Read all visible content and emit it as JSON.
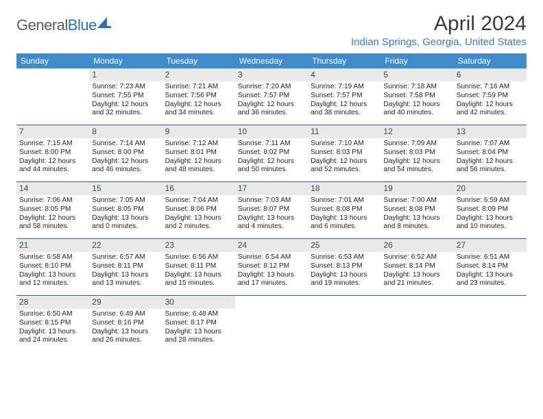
{
  "brand": {
    "part1": "General",
    "part2": "Blue"
  },
  "title": "April 2024",
  "location": "Indian Springs, Georgia, United States",
  "colors": {
    "header_bar": "#3e8ccc",
    "header_text": "#ffffff",
    "daynum_bg": "#e9e9e9",
    "week_divider": "#2f5d88",
    "location_color": "#3e7ab5",
    "logo_gray": "#5b5b5b",
    "logo_blue": "#2a71b8"
  },
  "weekdays": [
    "Sunday",
    "Monday",
    "Tuesday",
    "Wednesday",
    "Thursday",
    "Friday",
    "Saturday"
  ],
  "weeks": [
    [
      {
        "n": "",
        "sunrise": "",
        "sunset": "",
        "daylight": ""
      },
      {
        "n": "1",
        "sunrise": "Sunrise: 7:23 AM",
        "sunset": "Sunset: 7:55 PM",
        "daylight": "Daylight: 12 hours and 32 minutes."
      },
      {
        "n": "2",
        "sunrise": "Sunrise: 7:21 AM",
        "sunset": "Sunset: 7:56 PM",
        "daylight": "Daylight: 12 hours and 34 minutes."
      },
      {
        "n": "3",
        "sunrise": "Sunrise: 7:20 AM",
        "sunset": "Sunset: 7:57 PM",
        "daylight": "Daylight: 12 hours and 36 minutes."
      },
      {
        "n": "4",
        "sunrise": "Sunrise: 7:19 AM",
        "sunset": "Sunset: 7:57 PM",
        "daylight": "Daylight: 12 hours and 38 minutes."
      },
      {
        "n": "5",
        "sunrise": "Sunrise: 7:18 AM",
        "sunset": "Sunset: 7:58 PM",
        "daylight": "Daylight: 12 hours and 40 minutes."
      },
      {
        "n": "6",
        "sunrise": "Sunrise: 7:16 AM",
        "sunset": "Sunset: 7:59 PM",
        "daylight": "Daylight: 12 hours and 42 minutes."
      }
    ],
    [
      {
        "n": "7",
        "sunrise": "Sunrise: 7:15 AM",
        "sunset": "Sunset: 8:00 PM",
        "daylight": "Daylight: 12 hours and 44 minutes."
      },
      {
        "n": "8",
        "sunrise": "Sunrise: 7:14 AM",
        "sunset": "Sunset: 8:00 PM",
        "daylight": "Daylight: 12 hours and 46 minutes."
      },
      {
        "n": "9",
        "sunrise": "Sunrise: 7:12 AM",
        "sunset": "Sunset: 8:01 PM",
        "daylight": "Daylight: 12 hours and 48 minutes."
      },
      {
        "n": "10",
        "sunrise": "Sunrise: 7:11 AM",
        "sunset": "Sunset: 8:02 PM",
        "daylight": "Daylight: 12 hours and 50 minutes."
      },
      {
        "n": "11",
        "sunrise": "Sunrise: 7:10 AM",
        "sunset": "Sunset: 8:03 PM",
        "daylight": "Daylight: 12 hours and 52 minutes."
      },
      {
        "n": "12",
        "sunrise": "Sunrise: 7:09 AM",
        "sunset": "Sunset: 8:03 PM",
        "daylight": "Daylight: 12 hours and 54 minutes."
      },
      {
        "n": "13",
        "sunrise": "Sunrise: 7:07 AM",
        "sunset": "Sunset: 8:04 PM",
        "daylight": "Daylight: 12 hours and 56 minutes."
      }
    ],
    [
      {
        "n": "14",
        "sunrise": "Sunrise: 7:06 AM",
        "sunset": "Sunset: 8:05 PM",
        "daylight": "Daylight: 12 hours and 58 minutes."
      },
      {
        "n": "15",
        "sunrise": "Sunrise: 7:05 AM",
        "sunset": "Sunset: 8:05 PM",
        "daylight": "Daylight: 13 hours and 0 minutes."
      },
      {
        "n": "16",
        "sunrise": "Sunrise: 7:04 AM",
        "sunset": "Sunset: 8:06 PM",
        "daylight": "Daylight: 13 hours and 2 minutes."
      },
      {
        "n": "17",
        "sunrise": "Sunrise: 7:03 AM",
        "sunset": "Sunset: 8:07 PM",
        "daylight": "Daylight: 13 hours and 4 minutes."
      },
      {
        "n": "18",
        "sunrise": "Sunrise: 7:01 AM",
        "sunset": "Sunset: 8:08 PM",
        "daylight": "Daylight: 13 hours and 6 minutes."
      },
      {
        "n": "19",
        "sunrise": "Sunrise: 7:00 AM",
        "sunset": "Sunset: 8:08 PM",
        "daylight": "Daylight: 13 hours and 8 minutes."
      },
      {
        "n": "20",
        "sunrise": "Sunrise: 6:59 AM",
        "sunset": "Sunset: 8:09 PM",
        "daylight": "Daylight: 13 hours and 10 minutes."
      }
    ],
    [
      {
        "n": "21",
        "sunrise": "Sunrise: 6:58 AM",
        "sunset": "Sunset: 8:10 PM",
        "daylight": "Daylight: 13 hours and 12 minutes."
      },
      {
        "n": "22",
        "sunrise": "Sunrise: 6:57 AM",
        "sunset": "Sunset: 8:11 PM",
        "daylight": "Daylight: 13 hours and 13 minutes."
      },
      {
        "n": "23",
        "sunrise": "Sunrise: 6:56 AM",
        "sunset": "Sunset: 8:11 PM",
        "daylight": "Daylight: 13 hours and 15 minutes."
      },
      {
        "n": "24",
        "sunrise": "Sunrise: 6:54 AM",
        "sunset": "Sunset: 8:12 PM",
        "daylight": "Daylight: 13 hours and 17 minutes."
      },
      {
        "n": "25",
        "sunrise": "Sunrise: 6:53 AM",
        "sunset": "Sunset: 8:13 PM",
        "daylight": "Daylight: 13 hours and 19 minutes."
      },
      {
        "n": "26",
        "sunrise": "Sunrise: 6:52 AM",
        "sunset": "Sunset: 8:14 PM",
        "daylight": "Daylight: 13 hours and 21 minutes."
      },
      {
        "n": "27",
        "sunrise": "Sunrise: 6:51 AM",
        "sunset": "Sunset: 8:14 PM",
        "daylight": "Daylight: 13 hours and 23 minutes."
      }
    ],
    [
      {
        "n": "28",
        "sunrise": "Sunrise: 6:50 AM",
        "sunset": "Sunset: 8:15 PM",
        "daylight": "Daylight: 13 hours and 24 minutes."
      },
      {
        "n": "29",
        "sunrise": "Sunrise: 6:49 AM",
        "sunset": "Sunset: 8:16 PM",
        "daylight": "Daylight: 13 hours and 26 minutes."
      },
      {
        "n": "30",
        "sunrise": "Sunrise: 6:48 AM",
        "sunset": "Sunset: 8:17 PM",
        "daylight": "Daylight: 13 hours and 28 minutes."
      },
      {
        "n": "",
        "sunrise": "",
        "sunset": "",
        "daylight": ""
      },
      {
        "n": "",
        "sunrise": "",
        "sunset": "",
        "daylight": ""
      },
      {
        "n": "",
        "sunrise": "",
        "sunset": "",
        "daylight": ""
      },
      {
        "n": "",
        "sunrise": "",
        "sunset": "",
        "daylight": ""
      }
    ]
  ]
}
